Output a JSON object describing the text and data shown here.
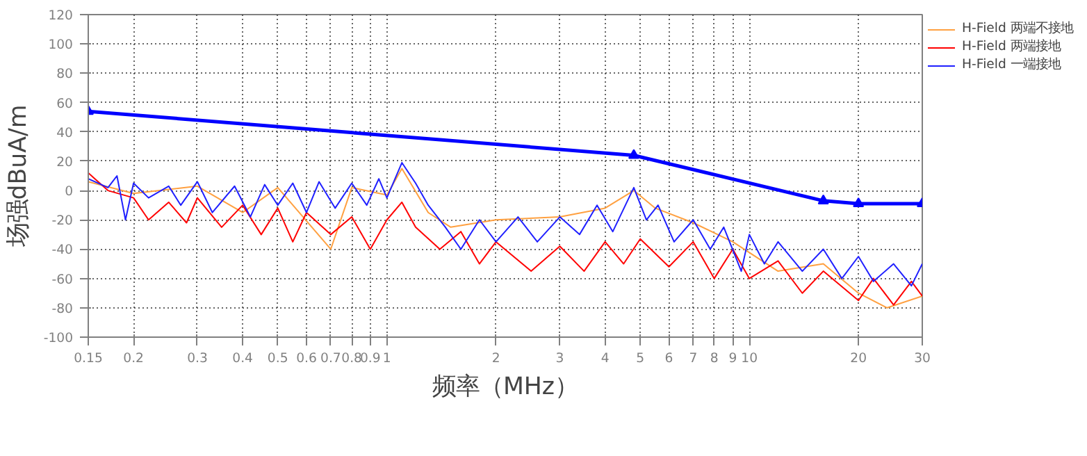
{
  "chart_data": {
    "type": "line",
    "xlabel": "频率（MHz）",
    "ylabel": "场强dBuA/m",
    "log": "x",
    "xlim": [
      0.15,
      30
    ],
    "xticks": [
      0.15,
      0.2,
      0.3,
      0.4,
      0.5,
      0.6,
      0.7,
      0.8,
      0.9,
      1,
      2,
      3,
      4,
      5,
      6,
      7,
      8,
      9,
      10,
      20,
      30
    ],
    "ylim": [
      -100,
      120
    ],
    "yticks": [
      -100,
      -80,
      -60,
      -40,
      -20,
      0,
      20,
      40,
      60,
      80,
      100,
      120
    ],
    "grid": true,
    "legend": "top right",
    "line_style": "solid",
    "series": [
      {
        "name": "H-Field 两端不接地",
        "color": "#ffa040",
        "x": [
          0.15,
          0.2,
          0.3,
          0.4,
          0.5,
          0.7,
          0.8,
          1.0,
          1.1,
          1.3,
          1.5,
          2,
          3,
          4,
          4.8,
          5.5,
          7,
          9,
          12,
          16,
          20,
          24,
          30
        ],
        "values": [
          6,
          -2,
          3,
          -15,
          2,
          -40,
          2,
          -3,
          15,
          -15,
          -25,
          -20,
          -18,
          -12,
          0,
          -12,
          -22,
          -35,
          -55,
          -50,
          -70,
          -80,
          -72
        ]
      },
      {
        "name": "H-Field 两端接地",
        "color": "#ff0000",
        "x": [
          0.15,
          0.17,
          0.2,
          0.22,
          0.25,
          0.28,
          0.3,
          0.35,
          0.4,
          0.45,
          0.5,
          0.55,
          0.6,
          0.7,
          0.8,
          0.9,
          1.0,
          1.1,
          1.2,
          1.4,
          1.6,
          1.8,
          2.0,
          2.5,
          3,
          3.5,
          4,
          4.5,
          5,
          6,
          7,
          8,
          9,
          10,
          12,
          14,
          16,
          20,
          22,
          25,
          28,
          30
        ],
        "values": [
          12,
          0,
          -5,
          -20,
          -8,
          -22,
          -5,
          -25,
          -10,
          -30,
          -12,
          -35,
          -15,
          -30,
          -18,
          -40,
          -20,
          -8,
          -25,
          -40,
          -28,
          -50,
          -35,
          -55,
          -38,
          -55,
          -35,
          -50,
          -33,
          -52,
          -35,
          -60,
          -40,
          -60,
          -48,
          -70,
          -55,
          -75,
          -60,
          -78,
          -62,
          -72
        ]
      },
      {
        "name": "H-Field 一端接地",
        "color": "#2020ff",
        "x": [
          0.15,
          0.17,
          0.18,
          0.19,
          0.2,
          0.22,
          0.25,
          0.27,
          0.3,
          0.33,
          0.38,
          0.42,
          0.46,
          0.5,
          0.55,
          0.6,
          0.65,
          0.72,
          0.8,
          0.88,
          0.95,
          1.0,
          1.1,
          1.2,
          1.3,
          1.45,
          1.6,
          1.8,
          2.0,
          2.3,
          2.6,
          3.0,
          3.4,
          3.8,
          4.2,
          4.8,
          5.2,
          5.6,
          6.2,
          7,
          7.8,
          8.5,
          9.5,
          10,
          11,
          12,
          14,
          16,
          18,
          20,
          22,
          25,
          28,
          30
        ],
        "values": [
          8,
          2,
          10,
          -20,
          5,
          -5,
          3,
          -10,
          6,
          -15,
          3,
          -18,
          4,
          -10,
          5,
          -15,
          6,
          -12,
          5,
          -10,
          8,
          -5,
          19,
          5,
          -10,
          -25,
          -40,
          -20,
          -35,
          -18,
          -35,
          -18,
          -30,
          -10,
          -28,
          2,
          -20,
          -10,
          -35,
          -20,
          -40,
          -25,
          -55,
          -30,
          -50,
          -35,
          -55,
          -40,
          -60,
          -45,
          -62,
          -50,
          -65,
          -50
        ]
      },
      {
        "color": "#0000ff",
        "marker": "triangle",
        "x": [
          0.15,
          4.8,
          16,
          20,
          30
        ],
        "values": [
          54,
          24,
          -7,
          -9,
          -9
        ]
      }
    ]
  }
}
